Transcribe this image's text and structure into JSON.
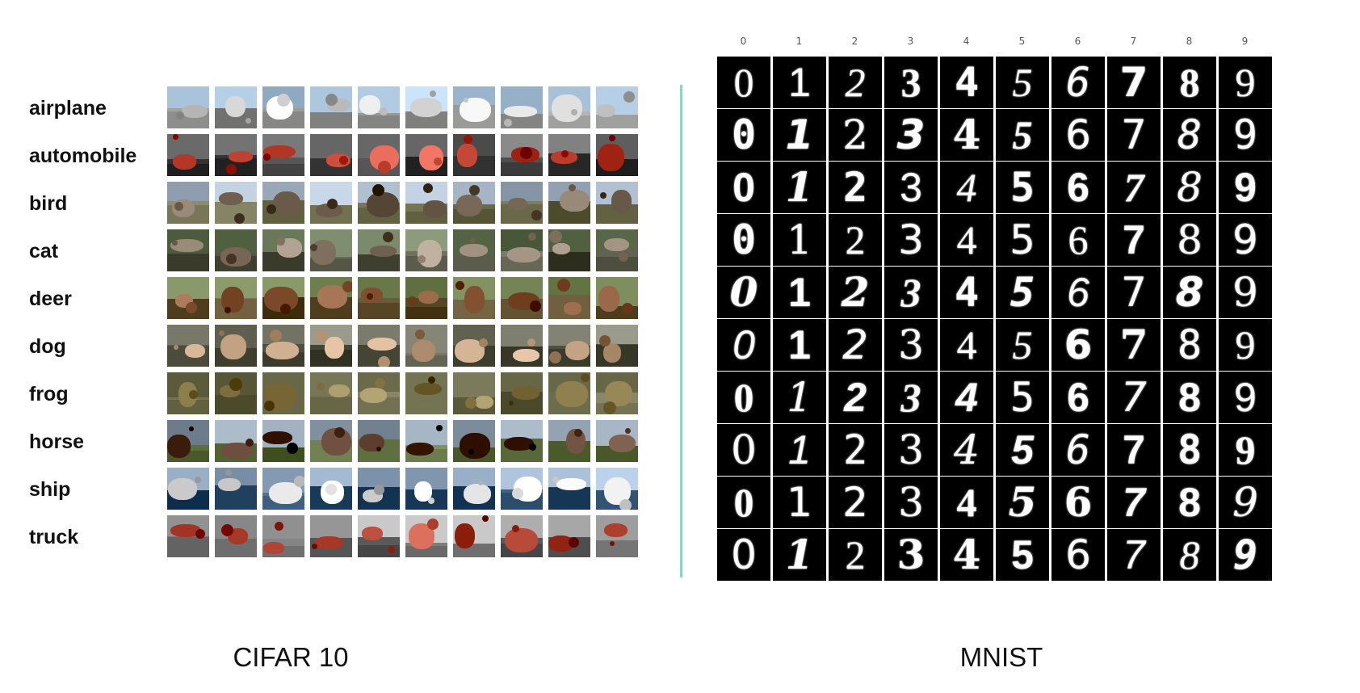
{
  "cifar": {
    "caption": "CIFAR 10",
    "classes": [
      {
        "label": "airplane",
        "colors": {
          "sky": "#aac4dc",
          "ground": "#8a8a88",
          "blob": "#d8d8d8"
        }
      },
      {
        "label": "automobile",
        "colors": {
          "sky": "#6a6a6a",
          "ground": "#3a3a3a",
          "blob": "#c84a3a"
        }
      },
      {
        "label": "bird",
        "colors": {
          "sky": "#a8b8c8",
          "ground": "#6a6a4a",
          "blob": "#7a6a5a"
        }
      },
      {
        "label": "cat",
        "colors": {
          "sky": "#6a7a5a",
          "ground": "#4a4a3a",
          "blob": "#9a8a7a"
        }
      },
      {
        "label": "deer",
        "colors": {
          "sky": "#6a7a4a",
          "ground": "#5a4a2a",
          "blob": "#8a5a3a"
        }
      },
      {
        "label": "dog",
        "colors": {
          "sky": "#7a7a6a",
          "ground": "#4a4a3a",
          "blob": "#c8a888"
        }
      },
      {
        "label": "frog",
        "colors": {
          "sky": "#6a6a4a",
          "ground": "#5a5a3a",
          "blob": "#8a7a4a"
        }
      },
      {
        "label": "horse",
        "colors": {
          "sky": "#8a9aa8",
          "ground": "#5a6a3a",
          "blob": "#5a3a2a"
        }
      },
      {
        "label": "ship",
        "colors": {
          "sky": "#9ab0c8",
          "ground": "#2a4a6a",
          "blob": "#e8e8e8"
        }
      },
      {
        "label": "truck",
        "colors": {
          "sky": "#a8a8a8",
          "ground": "#5a5a5a",
          "blob": "#b84a3a"
        }
      }
    ]
  },
  "mnist": {
    "caption": "MNIST",
    "column_labels": [
      "0",
      "1",
      "2",
      "3",
      "4",
      "5",
      "6",
      "7",
      "8",
      "9"
    ],
    "rows": 10,
    "digits": [
      "0",
      "1",
      "2",
      "3",
      "4",
      "5",
      "6",
      "7",
      "8",
      "9"
    ]
  }
}
